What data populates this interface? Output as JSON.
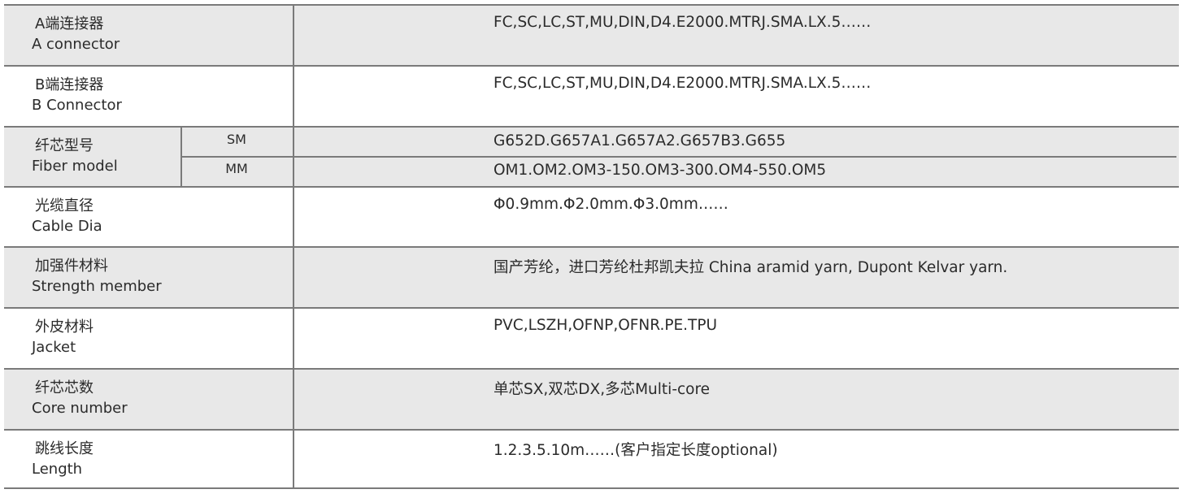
{
  "rows": [
    {
      "zh": "A端连接器",
      "en": "A connector",
      "value": "FC,SC,LC,ST,MU,DIN,D4.E2000.MTRJ.SMA.LX.5……"
    },
    {
      "zh": "B端连接器",
      "en": "B Connector",
      "value": "FC,SC,LC,ST,MU,DIN,D4.E2000.MTRJ.SMA.LX.5……"
    },
    {
      "zh": "纤芯型号",
      "en": "Fiber model",
      "sub": [
        {
          "type": "SM",
          "value": "G652D.G657A1.G657A2.G657B3.G655"
        },
        {
          "type": "MM",
          "value": "OM1.OM2.OM3-150.OM3-300.OM4-550.OM5"
        }
      ]
    },
    {
      "zh": "光缆直径",
      "en": "Cable Dia",
      "value": "Φ0.9mm.Φ2.0mm.Φ3.0mm……"
    },
    {
      "zh": "加强件材料",
      "en": "Strength member",
      "value": "国产芳纶，进口芳纶杜邦凯夫拉 China aramid yarn, Dupont Kelvar yarn."
    },
    {
      "zh": "外皮材料",
      "en": "Jacket",
      "value": "PVC,LSZH,OFNP,OFNR.PE.TPU"
    },
    {
      "zh": "纤芯芯数",
      "en": "Core number",
      "value": "单芯SX,双芯DX,多芯Multi-core"
    },
    {
      "zh": "跳线长度",
      "en": "Length",
      "value": "1.2.3.5.10m……(客户指定长度optional)"
    }
  ],
  "colors": {
    "row_gray": "#e8e8e8",
    "border": "#7a7a7a",
    "text": "#2b2b2b"
  }
}
